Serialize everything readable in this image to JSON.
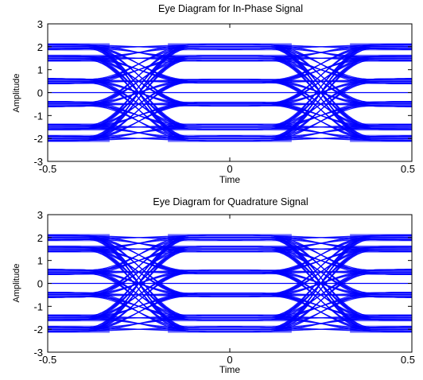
{
  "figure": {
    "background": "#ffffff",
    "trace_color": "#0000ff",
    "axis_color": "#000000"
  },
  "chart_data": [
    {
      "type": "line",
      "title": "Eye Diagram for In-Phase Signal",
      "xlabel": "Time",
      "ylabel": "Amplitude",
      "xlim": [
        -0.5,
        0.5
      ],
      "ylim": [
        -3,
        3
      ],
      "xticks": [
        -0.5,
        0,
        0.5
      ],
      "yticks": [
        3,
        2,
        1,
        0,
        -1,
        -2,
        -3
      ],
      "xtick_labels": [
        "-0.5",
        "0",
        "0.5"
      ],
      "ytick_labels": [
        "3",
        "2",
        "1",
        "0",
        "-1",
        "-2",
        "-3"
      ],
      "grid": false,
      "symbol_levels": [
        -2,
        -1.5,
        -0.5,
        0.5,
        1.5,
        2
      ],
      "crossing_times": [
        -0.25,
        0.25
      ],
      "bundle_half_width": {
        "outer": 0.11,
        "inner": 0.08
      },
      "midline": 0,
      "series": [
        {
          "values": [
            {
              "x": -0.5,
              "y": -2
            },
            {
              "x": -0.25,
              "y": -1.75
            },
            {
              "x": 0,
              "y": -1.5
            },
            {
              "x": 0.25,
              "y": -1.75
            },
            {
              "x": 0.5,
              "y": -2
            }
          ]
        }
      ]
    },
    {
      "type": "line",
      "title": "Eye Diagram for Quadrature Signal",
      "xlabel": "Time",
      "ylabel": "Amplitude",
      "xlim": [
        -0.5,
        0.5
      ],
      "ylim": [
        -3,
        3
      ],
      "xticks": [
        -0.5,
        0,
        0.5
      ],
      "yticks": [
        3,
        2,
        1,
        0,
        -1,
        -2,
        -3
      ],
      "xtick_labels": [
        "-0.5",
        "0",
        "0.5"
      ],
      "ytick_labels": [
        "3",
        "2",
        "1",
        "0",
        "-1",
        "-2",
        "-3"
      ],
      "grid": false,
      "symbol_levels": [
        -2,
        -1.5,
        -0.5,
        0.5,
        1.5,
        2
      ],
      "crossing_times": [
        -0.25,
        0.25
      ],
      "bundle_half_width": {
        "outer": 0.11,
        "inner": 0.08
      },
      "midline": 0,
      "series": [
        {
          "values": [
            {
              "x": -0.5,
              "y": 2
            },
            {
              "x": -0.25,
              "y": 1.75
            },
            {
              "x": 0,
              "y": 1.5
            },
            {
              "x": 0.25,
              "y": 1.75
            },
            {
              "x": 0.5,
              "y": 2
            }
          ]
        }
      ]
    }
  ]
}
